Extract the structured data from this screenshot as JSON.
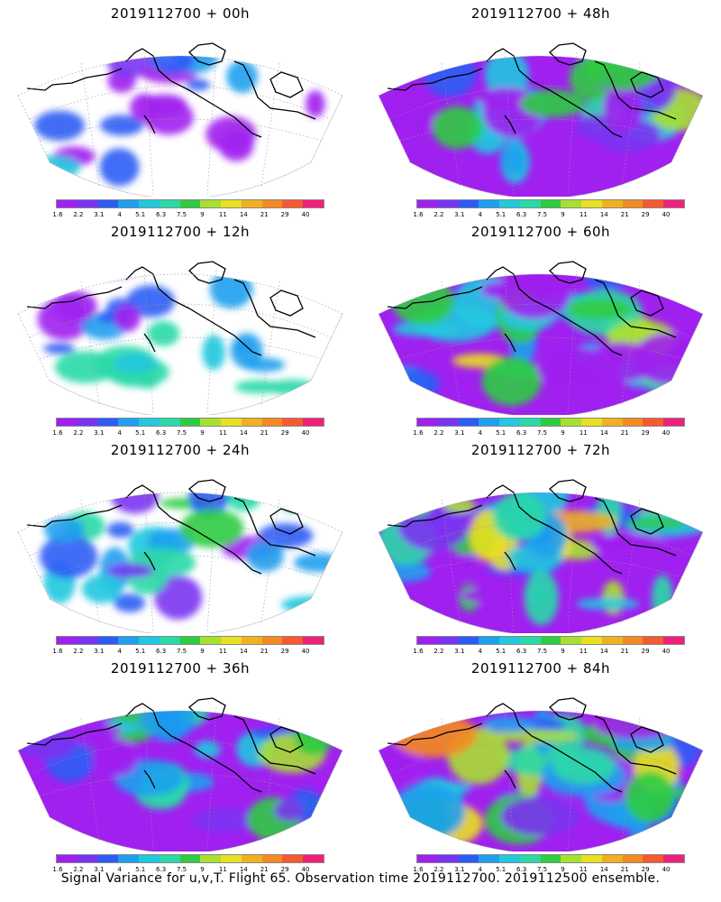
{
  "colorbar": {
    "ticks": [
      "1.6",
      "2.2",
      "3.1",
      "4",
      "5.1",
      "6.3",
      "7.5",
      "9",
      "11",
      "14",
      "21",
      "29",
      "40"
    ],
    "colors": [
      "#a020f0",
      "#7a33f2",
      "#2b5cf5",
      "#1ea0f0",
      "#20c8e0",
      "#2ad9a8",
      "#2ecc40",
      "#a8e030",
      "#e8e020",
      "#f0b020",
      "#f58a20",
      "#f55a30",
      "#f0207a"
    ]
  },
  "panels": [
    {
      "title": "2019112700 + 00h",
      "intensity": 0.25
    },
    {
      "title": "2019112700 + 48h",
      "intensity": 0.6
    },
    {
      "title": "2019112700 + 12h",
      "intensity": 0.4
    },
    {
      "title": "2019112700 + 60h",
      "intensity": 0.72
    },
    {
      "title": "2019112700 + 24h",
      "intensity": 0.5
    },
    {
      "title": "2019112700 + 72h",
      "intensity": 0.82
    },
    {
      "title": "2019112700 + 36h",
      "intensity": 0.58
    },
    {
      "title": "2019112700 + 84h",
      "intensity": 0.92
    }
  ],
  "footer": "Signal Variance for u,v,T. Flight 65. Observation time 2019112700. 2019112500 ensemble."
}
